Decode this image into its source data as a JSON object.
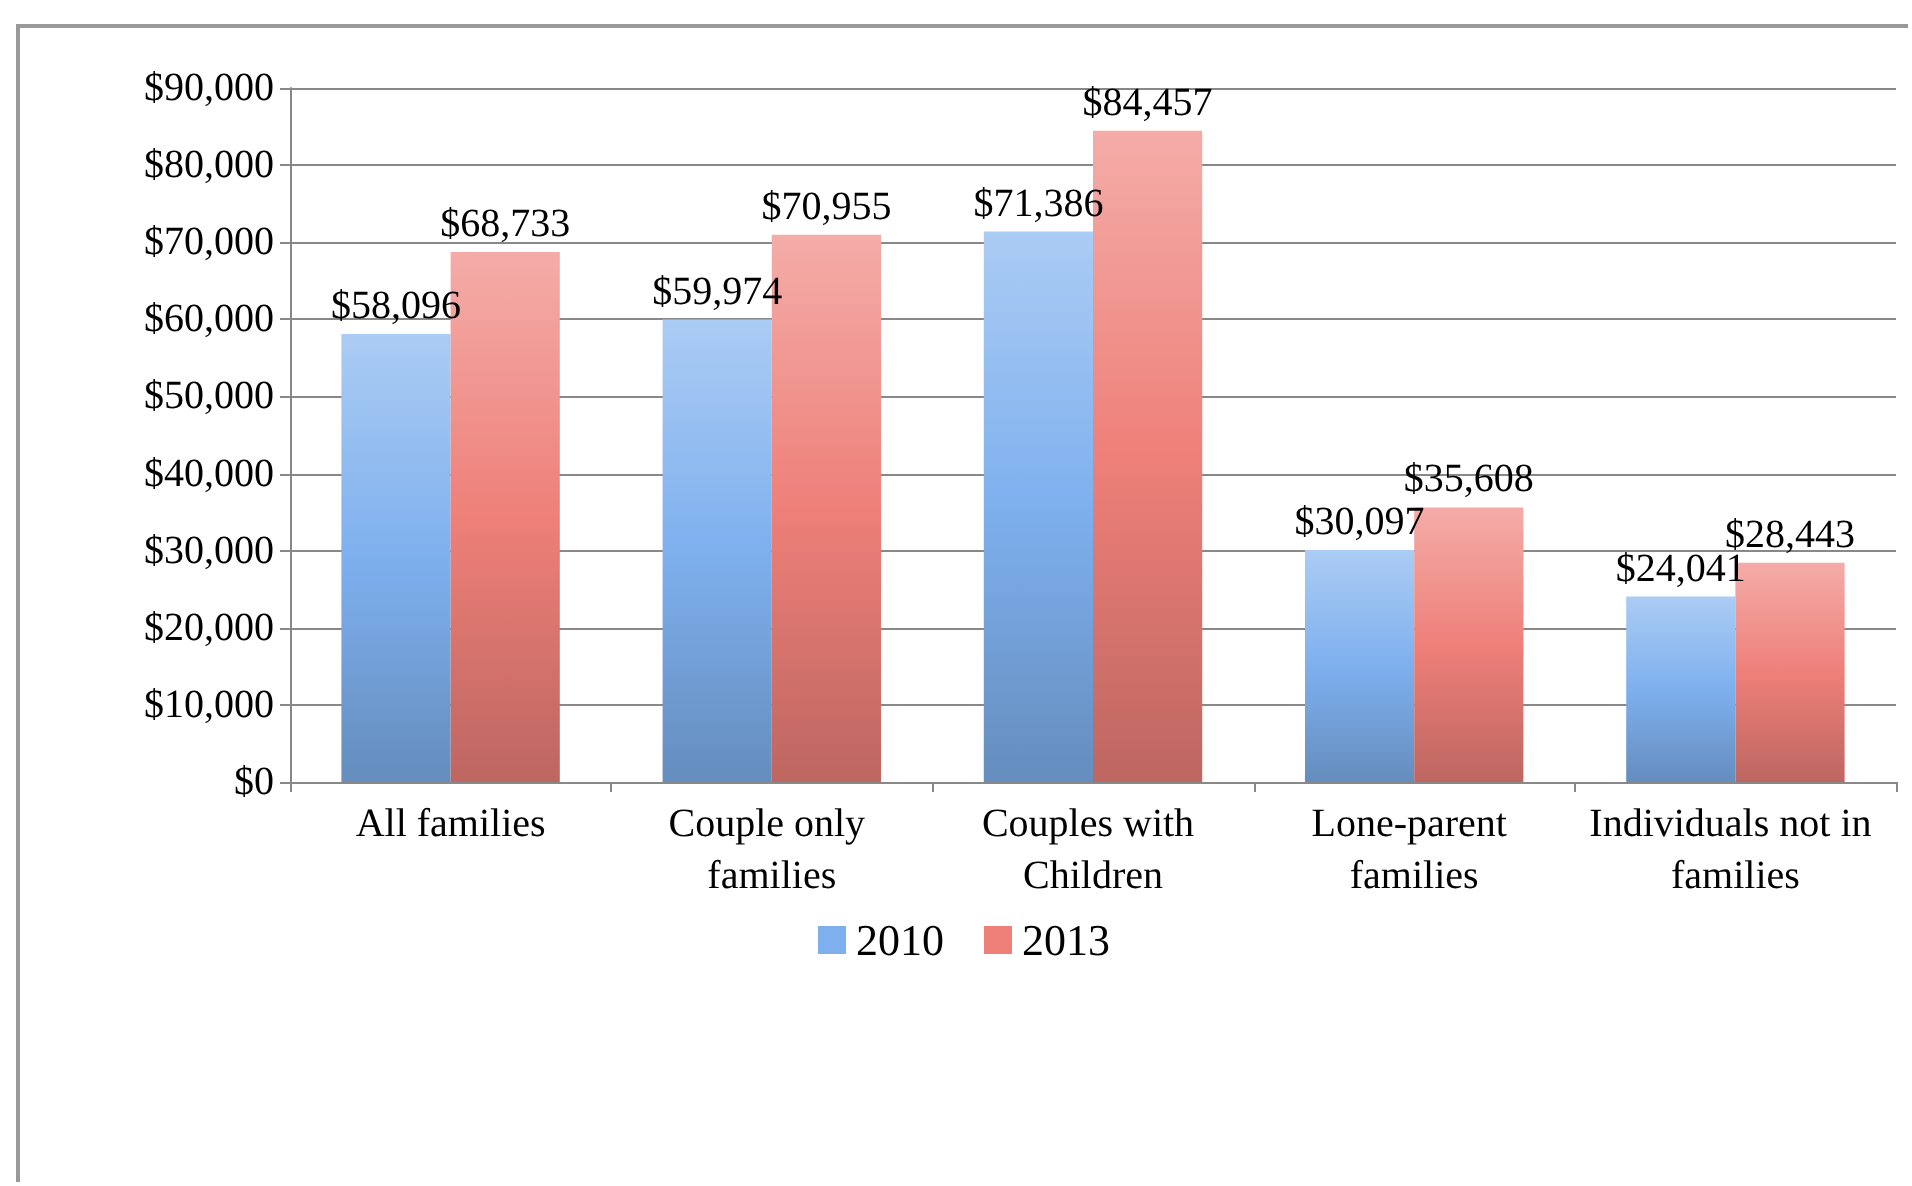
{
  "chart_data": {
    "type": "bar",
    "categories": [
      "All families",
      "Couple only families",
      "Couples with Children",
      "Lone-parent families",
      "Individuals not in families"
    ],
    "series": [
      {
        "name": "2010",
        "color": "#7eb0ee",
        "values": [
          58096,
          59974,
          71386,
          30097,
          24041
        ]
      },
      {
        "name": "2013",
        "color": "#ee8079",
        "values": [
          68733,
          70955,
          84457,
          35608,
          28443
        ]
      }
    ],
    "ylim": [
      0,
      90000
    ],
    "yticks": [
      {
        "value": 0,
        "label": "$0"
      },
      {
        "value": 10000,
        "label": "$10,000"
      },
      {
        "value": 20000,
        "label": "$20,000"
      },
      {
        "value": 30000,
        "label": "$30,000"
      },
      {
        "value": 40000,
        "label": "$40,000"
      },
      {
        "value": 50000,
        "label": "$50,000"
      },
      {
        "value": 60000,
        "label": "$60,000"
      },
      {
        "value": 70000,
        "label": "$70,000"
      },
      {
        "value": 80000,
        "label": "$80,000"
      },
      {
        "value": 90000,
        "label": "$90,000"
      }
    ],
    "value_labels": [
      [
        "$58,096",
        "$59,974",
        "$71,386",
        "$30,097",
        "$24,041"
      ],
      [
        "$68,733",
        "$70,955",
        "$84,457",
        "$35,608",
        "$28,443"
      ]
    ],
    "grid": "y",
    "legend": "bottom"
  }
}
